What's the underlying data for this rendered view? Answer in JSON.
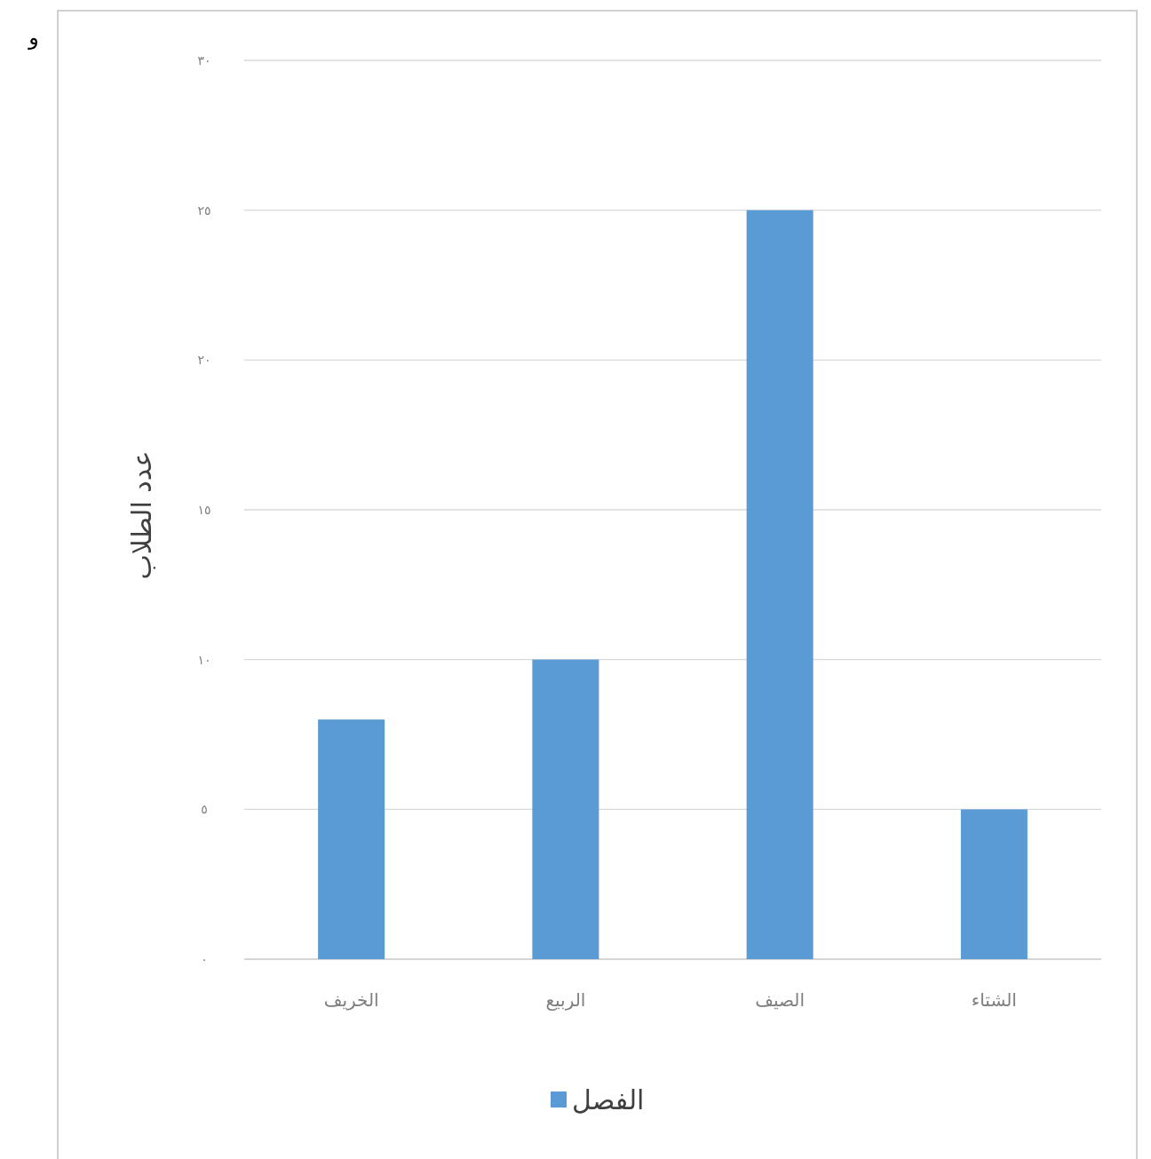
{
  "chart_data": {
    "type": "bar",
    "ylabel": "عدد الطلاب",
    "categories": [
      "الخريف",
      "الربيع",
      "الصيف",
      "الشتاء"
    ],
    "series": [
      {
        "name": "الفصل",
        "color": "#5b9bd5",
        "values": [
          8,
          10,
          25,
          5
        ]
      }
    ],
    "ylim": [
      0,
      30
    ],
    "yticks": [
      {
        "value": 0,
        "label": "٠"
      },
      {
        "value": 5,
        "label": "٥"
      },
      {
        "value": 10,
        "label": "١٠"
      },
      {
        "value": 15,
        "label": "١٥"
      },
      {
        "value": 20,
        "label": "٢٠"
      },
      {
        "value": 25,
        "label": "٢٥"
      },
      {
        "value": 30,
        "label": "٣٠"
      }
    ],
    "grid": "y",
    "legend": "bottom",
    "annotations": [
      "و"
    ]
  }
}
